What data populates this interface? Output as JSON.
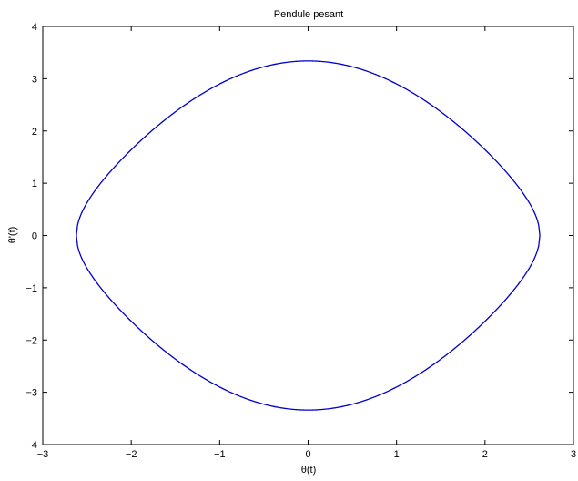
{
  "chart_data": {
    "type": "line",
    "title": "Pendule pesant",
    "xlabel": "θ(t)",
    "ylabel": "θ'(t)",
    "xlim": [
      -3,
      3
    ],
    "ylim": [
      -4,
      4
    ],
    "xticks": [
      -3,
      -2,
      -1,
      0,
      1,
      2,
      3
    ],
    "xtick_labels": [
      "−3",
      "−2",
      "−1",
      "0",
      "1",
      "2",
      "3"
    ],
    "yticks": [
      -4,
      -3,
      -2,
      -1,
      0,
      1,
      2,
      3,
      4
    ],
    "ytick_labels": [
      "−4",
      "−3",
      "−2",
      "−1",
      "0",
      "1",
      "2",
      "3",
      "4"
    ],
    "grid": false,
    "legend": "none",
    "series": [
      {
        "color": "#0000cc",
        "theta_max": 2.62,
        "note_points": [
          [
            -2.62,
            0
          ],
          [
            0,
            3.34
          ],
          [
            2.62,
            0
          ],
          [
            0,
            -3.34
          ]
        ]
      }
    ]
  }
}
